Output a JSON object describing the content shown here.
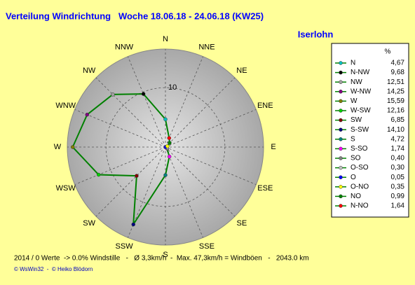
{
  "chart_data": {
    "type": "radar",
    "title": "Verteilung Windrichtung   Woche 18.06.18 - 24.06.18 (KW25)",
    "location": "Iserlohn",
    "legend_header": "%",
    "line_color": "#008000",
    "rlim": [
      0,
      16.5
    ],
    "rticks": [
      10
    ],
    "directions": [
      {
        "label": "N",
        "name": "N",
        "value": 4.67,
        "value_label": "4,67",
        "color": "#00c0c0"
      },
      {
        "label": "NNW",
        "name": "N-NW",
        "value": 9.68,
        "value_label": "9,68",
        "color": "#000000"
      },
      {
        "label": "NW",
        "name": "NW",
        "value": 12.51,
        "value_label": "12,51",
        "color": "#a0a0a0"
      },
      {
        "label": "WNW",
        "name": "W-NW",
        "value": 14.25,
        "value_label": "14,25",
        "color": "#800080"
      },
      {
        "label": "W",
        "name": "W",
        "value": 15.59,
        "value_label": "15,59",
        "color": "#808000"
      },
      {
        "label": "WSW",
        "name": "W-SW",
        "value": 12.16,
        "value_label": "12,16",
        "color": "#00d000"
      },
      {
        "label": "SW",
        "name": "SW",
        "value": 6.85,
        "value_label": "6,85",
        "color": "#800000"
      },
      {
        "label": "SSW",
        "name": "S-SW",
        "value": 14.1,
        "value_label": "14,10",
        "color": "#000080"
      },
      {
        "label": "S",
        "name": "S",
        "value": 4.72,
        "value_label": "4,72",
        "color": "#008080"
      },
      {
        "label": "SSE",
        "name": "S-SO",
        "value": 1.74,
        "value_label": "1,74",
        "color": "#ff00ff"
      },
      {
        "label": "SE",
        "name": "SO",
        "value": 0.4,
        "value_label": "0,40",
        "color": "#808080"
      },
      {
        "label": "ESE",
        "name": "O-SO",
        "value": 0.3,
        "value_label": "0,30",
        "color": "#c0c0c0"
      },
      {
        "label": "E",
        "name": "O",
        "value": 0.05,
        "value_label": "0,05",
        "color": "#0000ff"
      },
      {
        "label": "ENE",
        "name": "O-NO",
        "value": 0.35,
        "value_label": "0,35",
        "color": "#ffff00"
      },
      {
        "label": "NE",
        "name": "NO",
        "value": 0.99,
        "value_label": "0,99",
        "color": "#008000"
      },
      {
        "label": "NNE",
        "name": "N-NO",
        "value": 1.64,
        "value_label": "1,64",
        "color": "#ff0000"
      }
    ],
    "footer_stats": "2014 / 0 Werte  -> 0.0% Windstille   -   Ø 3,3km/h  -  Max. 47,3km/h = Windböen   -   2043.0 km",
    "credits": "© WsWin32  -  © Heiko Blödorn"
  }
}
